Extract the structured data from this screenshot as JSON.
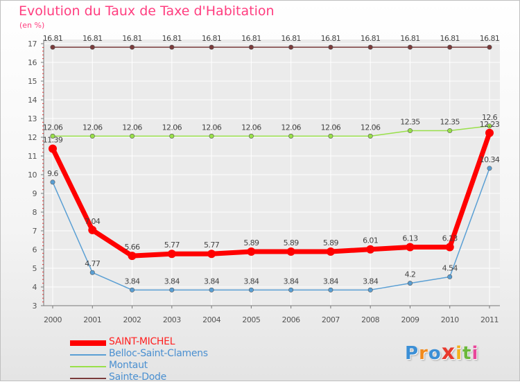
{
  "title": "Evolution du Taux de Taxe d'Habitation",
  "unit": "(en %)",
  "logo": {
    "text": "Proxiti",
    "letters": [
      "P",
      "r",
      "o",
      "x",
      "i",
      "t",
      "i"
    ],
    "colors": [
      "#3b8fd6",
      "#f28a1c",
      "#3b8fd6",
      "#e83a2e",
      "#f2b21c",
      "#6bb83a",
      "#e8479a"
    ]
  },
  "colors": {
    "title": "#ff3d7f",
    "axis": "#666666",
    "grid": "#ffffff"
  },
  "chart_data": {
    "type": "line",
    "x": [
      "2000",
      "2001",
      "2002",
      "2003",
      "2004",
      "2005",
      "2006",
      "2007",
      "2008",
      "2009",
      "2010",
      "2011"
    ],
    "ylim": [
      3,
      17
    ],
    "yticks": [
      3,
      4,
      5,
      6,
      7,
      8,
      9,
      10,
      11,
      12,
      13,
      14,
      15,
      16,
      17
    ],
    "grid": true,
    "legend_position": "bottom-left",
    "series": [
      {
        "name": "SAINT-MICHEL",
        "color": "#ff0000",
        "values": [
          11.39,
          7.04,
          5.66,
          5.77,
          5.77,
          5.89,
          5.89,
          5.89,
          6.01,
          6.13,
          6.13,
          12.23
        ],
        "labels": [
          "11.39",
          "7.04",
          "5.66",
          "5.77",
          "5.77",
          "5.89",
          "5.89",
          "5.89",
          "6.01",
          "6.13",
          "6.13",
          "12.23"
        ]
      },
      {
        "name": "Belloc-Saint-Clamens",
        "color": "#5a9fd4",
        "values": [
          9.6,
          4.77,
          3.84,
          3.84,
          3.84,
          3.84,
          3.84,
          3.84,
          3.84,
          4.2,
          4.54,
          10.34
        ],
        "labels": [
          "9.6",
          "4.77",
          "3.84",
          "3.84",
          "3.84",
          "3.84",
          "3.84",
          "3.84",
          "3.84",
          "4.2",
          "4.54",
          "10.34"
        ]
      },
      {
        "name": "Montaut",
        "color": "#99e04a",
        "values": [
          12.06,
          12.06,
          12.06,
          12.06,
          12.06,
          12.06,
          12.06,
          12.06,
          12.06,
          12.35,
          12.35,
          12.6
        ],
        "labels": [
          "12.06",
          "12.06",
          "12.06",
          "12.06",
          "12.06",
          "12.06",
          "12.06",
          "12.06",
          "12.06",
          "12.35",
          "12.35",
          "12.6"
        ]
      },
      {
        "name": "Sainte-Dode",
        "color": "#7a3b3b",
        "values": [
          16.81,
          16.81,
          16.81,
          16.81,
          16.81,
          16.81,
          16.81,
          16.81,
          16.81,
          16.81,
          16.81,
          16.81
        ],
        "labels": [
          "16.81",
          "16.81",
          "16.81",
          "16.81",
          "16.81",
          "16.81",
          "16.81",
          "16.81",
          "16.81",
          "16.81",
          "16.81",
          "16.81"
        ]
      }
    ]
  }
}
